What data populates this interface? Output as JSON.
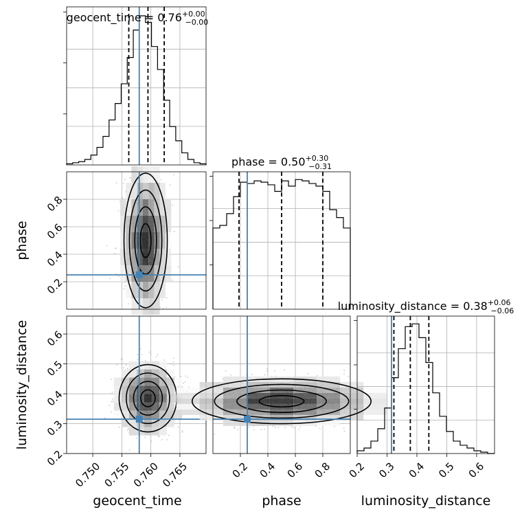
{
  "chart_data": {
    "type": "corner",
    "parameters": [
      "geocent_time",
      "phase",
      "luminosity_distance"
    ],
    "axis_labels": {
      "geocent_time": "geocent_time",
      "phase": "phase",
      "luminosity_distance": "luminosity_distance"
    },
    "ranges": {
      "geocent_time": [
        0.7455,
        0.7695
      ],
      "phase": [
        0.0,
        1.0
      ],
      "luminosity_distance": [
        0.2,
        0.66
      ]
    },
    "ticks": {
      "geocent_time": [
        0.75,
        0.755,
        0.76,
        0.765
      ],
      "phase": [
        0.2,
        0.4,
        0.6,
        0.8
      ],
      "luminosity_distance": [
        0.2,
        0.3,
        0.4,
        0.5,
        0.6
      ]
    },
    "tick_labels": {
      "geocent_time": [
        "0.750",
        "0.755",
        "0.760",
        "0.765"
      ],
      "phase": [
        "0.2",
        "0.4",
        "0.6",
        "0.8"
      ],
      "luminosity_distance": [
        "0.2",
        "0.3",
        "0.4",
        "0.5",
        "0.6"
      ]
    },
    "truths": {
      "geocent_time": 0.758,
      "phase": 0.25,
      "luminosity_distance": 0.315
    },
    "titles": [
      {
        "param": "geocent_time",
        "prefix": "geocent_time = ",
        "value": "0.76",
        "plus": "+0.00",
        "minus": "−0.00"
      },
      {
        "param": "phase",
        "prefix": "phase = ",
        "value": "0.50",
        "plus": "+0.30",
        "minus": "−0.31"
      },
      {
        "param": "luminosity_distance",
        "prefix": "luminosity_distance = ",
        "value": "0.38",
        "plus": "+0.06",
        "minus": "−0.06"
      }
    ],
    "quantiles": {
      "geocent_time": [
        0.7562,
        0.7595,
        0.7623
      ],
      "phase": [
        0.19,
        0.5,
        0.8
      ],
      "luminosity_distance": [
        0.323,
        0.378,
        0.44
      ]
    },
    "histograms": {
      "geocent_time": [
        1,
        2,
        3,
        5,
        9,
        16,
        26,
        41,
        56,
        74,
        98,
        123,
        136,
        130,
        108,
        87,
        59,
        35,
        22,
        11,
        5,
        2,
        1
      ],
      "phase": [
        62,
        64,
        73,
        86,
        97,
        96,
        98,
        97,
        95,
        90,
        98,
        94,
        99,
        98,
        96,
        94,
        90,
        76,
        70,
        62
      ],
      "luminosity_distance": [
        2,
        4,
        9,
        18,
        33,
        55,
        76,
        92,
        94,
        84,
        66,
        44,
        27,
        16,
        9,
        6,
        4,
        2,
        1,
        0
      ]
    },
    "densities": {
      "phase_vs_geocent_time": {
        "x": [
          0.752,
          0.7685
        ],
        "y": [
          0.0,
          1.0
        ],
        "center_x": 0.7591,
        "center_y": 0.5
      },
      "luminosity_distance_vs_geocent_time": {
        "x": [
          0.7455,
          0.7695
        ],
        "y": [
          0.2,
          0.66
        ],
        "center_x": 0.7595,
        "center_y": 0.385
      },
      "luminosity_distance_vs_phase": {
        "x": [
          0.0,
          1.0
        ],
        "y": [
          0.2,
          0.66
        ],
        "center_x": 0.5,
        "center_y": 0.375
      }
    }
  }
}
